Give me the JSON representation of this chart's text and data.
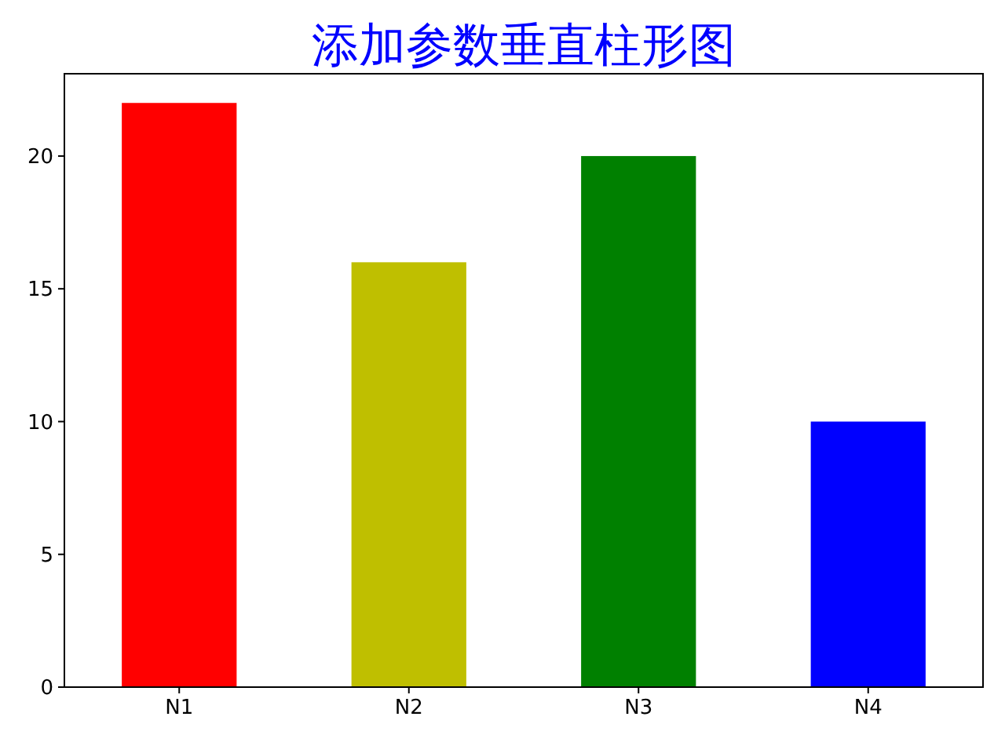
{
  "chart_data": {
    "type": "bar",
    "title": "添加参数垂直柱形图",
    "categories": [
      "N1",
      "N2",
      "N3",
      "N4"
    ],
    "values": [
      22,
      16,
      20,
      10
    ],
    "colors": [
      "#ff0000",
      "#bfbf00",
      "#008000",
      "#0000ff"
    ],
    "ylim": [
      0,
      23.1
    ],
    "yticks": [
      0,
      5,
      10,
      15,
      20
    ],
    "grid": false
  }
}
